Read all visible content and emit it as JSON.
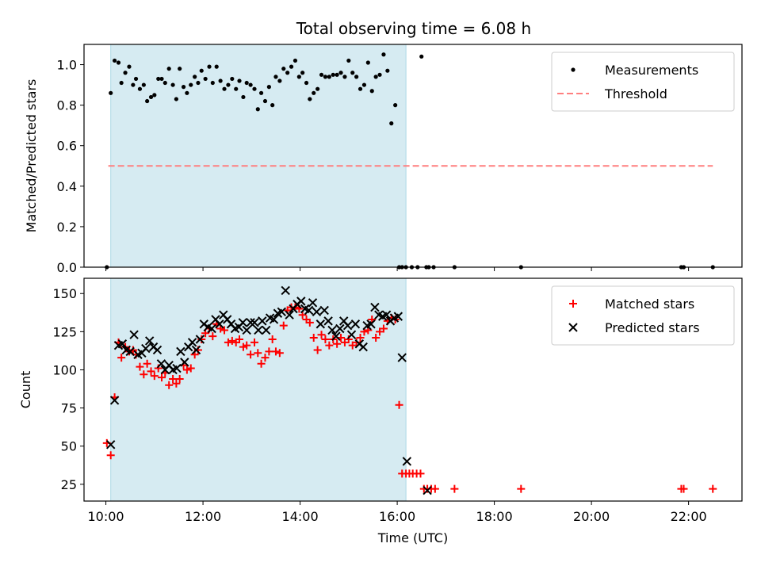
{
  "chart_data": [
    {
      "type": "scatter",
      "title": "Total observing time = 6.08 h",
      "xlabel": "",
      "ylabel": "Matched/Predicted stars",
      "xlim": [
        9.55,
        23.1
      ],
      "ylim": [
        0,
        1.1
      ],
      "yticks": [
        0.0,
        0.2,
        0.4,
        0.6,
        0.8,
        1.0
      ],
      "ytick_labels": [
        "0.0",
        "0.2",
        "0.4",
        "0.6",
        "0.8",
        "1.0"
      ],
      "grid": false,
      "legend_position": "top-right",
      "shaded_span": {
        "x0": 10.1,
        "x1": 16.18,
        "color": "#add8e6"
      },
      "threshold": {
        "name": "Threshold",
        "y": 0.5,
        "x0": 10.05,
        "x1": 22.5,
        "color": "#ff7f7f"
      },
      "series": [
        {
          "name": "Measurements",
          "color": "#000000",
          "x": [
            10.02,
            10.1,
            10.18,
            10.26,
            10.32,
            10.4,
            10.48,
            10.56,
            10.62,
            10.7,
            10.78,
            10.85,
            10.93,
            11.0,
            11.08,
            11.15,
            11.22,
            11.3,
            11.38,
            11.45,
            11.52,
            11.6,
            11.67,
            11.75,
            11.83,
            11.9,
            11.97,
            12.05,
            12.13,
            12.2,
            12.28,
            12.36,
            12.44,
            12.52,
            12.6,
            12.68,
            12.75,
            12.83,
            12.9,
            12.98,
            13.06,
            13.13,
            13.2,
            13.28,
            13.36,
            13.43,
            13.5,
            13.58,
            13.66,
            13.74,
            13.82,
            13.9,
            13.98,
            14.05,
            14.13,
            14.2,
            14.28,
            14.36,
            14.44,
            14.52,
            14.6,
            14.68,
            14.76,
            14.84,
            14.92,
            15.0,
            15.08,
            15.16,
            15.24,
            15.32,
            15.4,
            15.48,
            15.56,
            15.64,
            15.72,
            15.8,
            15.88,
            15.96,
            16.04,
            16.1,
            16.18,
            16.3,
            16.42,
            16.5,
            16.6,
            16.65,
            16.75,
            17.18,
            18.55,
            21.85,
            21.9,
            22.5
          ],
          "y": [
            0.0,
            0.86,
            1.02,
            1.01,
            0.91,
            0.96,
            0.99,
            0.9,
            0.93,
            0.88,
            0.9,
            0.82,
            0.84,
            0.85,
            0.93,
            0.93,
            0.91,
            0.98,
            0.9,
            0.83,
            0.98,
            0.89,
            0.86,
            0.9,
            0.94,
            0.91,
            0.97,
            0.93,
            0.99,
            0.91,
            0.99,
            0.92,
            0.88,
            0.9,
            0.93,
            0.88,
            0.92,
            0.84,
            0.91,
            0.9,
            0.88,
            0.78,
            0.86,
            0.82,
            0.89,
            0.8,
            0.94,
            0.92,
            0.98,
            0.96,
            0.99,
            1.02,
            0.94,
            0.96,
            0.91,
            0.83,
            0.86,
            0.88,
            0.95,
            0.94,
            0.94,
            0.95,
            0.95,
            0.96,
            0.94,
            1.02,
            0.96,
            0.94,
            0.88,
            0.9,
            1.01,
            0.87,
            0.94,
            0.95,
            1.05,
            0.97,
            0.71,
            0.8,
            0.0,
            0.0,
            0.0,
            0.0,
            0.0,
            1.04,
            0.0,
            0.0,
            0.0,
            0.0,
            0.0,
            0.0,
            0.0,
            0.0
          ]
        }
      ]
    },
    {
      "type": "scatter",
      "title": "",
      "xlabel": "Time (UTC)",
      "ylabel": "Count",
      "xlim": [
        9.55,
        23.1
      ],
      "ylim": [
        14,
        160
      ],
      "xticks": [
        10,
        12,
        14,
        16,
        18,
        20,
        22
      ],
      "xtick_labels": [
        "10:00",
        "12:00",
        "14:00",
        "16:00",
        "18:00",
        "20:00",
        "22:00"
      ],
      "yticks": [
        25,
        50,
        75,
        100,
        125,
        150
      ],
      "ytick_labels": [
        "25",
        "50",
        "75",
        "100",
        "125",
        "150"
      ],
      "grid": false,
      "legend_position": "top-right",
      "shaded_span": {
        "x0": 10.1,
        "x1": 16.18,
        "color": "#add8e6"
      },
      "series": [
        {
          "name": "Matched stars",
          "marker": "plus",
          "color": "#ff0000",
          "x": [
            10.02,
            10.1,
            10.18,
            10.26,
            10.32,
            10.4,
            10.48,
            10.56,
            10.62,
            10.7,
            10.78,
            10.85,
            10.93,
            11.0,
            11.08,
            11.15,
            11.22,
            11.3,
            11.38,
            11.45,
            11.52,
            11.6,
            11.67,
            11.75,
            11.83,
            11.9,
            11.97,
            12.05,
            12.13,
            12.2,
            12.28,
            12.36,
            12.44,
            12.52,
            12.6,
            12.68,
            12.75,
            12.83,
            12.9,
            12.98,
            13.06,
            13.13,
            13.2,
            13.28,
            13.36,
            13.43,
            13.5,
            13.58,
            13.66,
            13.74,
            13.82,
            13.9,
            13.98,
            14.05,
            14.13,
            14.2,
            14.28,
            14.36,
            14.44,
            14.52,
            14.6,
            14.68,
            14.76,
            14.84,
            14.92,
            15.0,
            15.08,
            15.16,
            15.24,
            15.32,
            15.4,
            15.48,
            15.56,
            15.64,
            15.72,
            15.8,
            15.88,
            15.96,
            16.04,
            16.1,
            16.18,
            16.25,
            16.32,
            16.4,
            16.48,
            16.55,
            16.62,
            16.7,
            16.78,
            17.18,
            18.55,
            21.85,
            21.9,
            22.5
          ],
          "y": [
            52,
            44,
            82,
            118,
            108,
            115,
            112,
            113,
            110,
            102,
            97,
            104,
            99,
            96,
            101,
            95,
            98,
            90,
            94,
            91,
            94,
            103,
            100,
            101,
            110,
            113,
            120,
            124,
            127,
            122,
            130,
            127,
            126,
            118,
            119,
            118,
            120,
            115,
            116,
            110,
            118,
            111,
            104,
            108,
            112,
            120,
            112,
            111,
            129,
            139,
            141,
            141,
            140,
            136,
            133,
            131,
            121,
            113,
            123,
            120,
            116,
            120,
            117,
            121,
            118,
            120,
            116,
            118,
            121,
            125,
            126,
            133,
            121,
            125,
            127,
            132,
            134,
            133,
            77,
            32,
            32,
            32,
            32,
            32,
            32,
            22,
            22,
            22,
            22,
            22,
            22,
            22,
            22,
            22
          ]
        },
        {
          "name": "Predicted stars",
          "marker": "x",
          "color": "#000000",
          "x": [
            10.1,
            10.18,
            10.26,
            10.34,
            10.42,
            10.5,
            10.58,
            10.66,
            10.74,
            10.82,
            10.9,
            10.98,
            11.06,
            11.14,
            11.22,
            11.3,
            11.38,
            11.46,
            11.54,
            11.62,
            11.7,
            11.78,
            11.86,
            11.94,
            12.02,
            12.1,
            12.18,
            12.26,
            12.34,
            12.42,
            12.5,
            12.58,
            12.66,
            12.74,
            12.82,
            12.9,
            12.98,
            13.06,
            13.14,
            13.22,
            13.3,
            13.38,
            13.46,
            13.54,
            13.62,
            13.7,
            13.78,
            13.86,
            13.94,
            14.02,
            14.1,
            14.18,
            14.26,
            14.34,
            14.42,
            14.5,
            14.58,
            14.66,
            14.74,
            14.82,
            14.9,
            14.98,
            15.06,
            15.14,
            15.22,
            15.3,
            15.38,
            15.46,
            15.54,
            15.62,
            15.7,
            15.78,
            15.86,
            15.94,
            16.02,
            16.1,
            16.2,
            16.62
          ],
          "y": [
            51,
            80,
            116,
            117,
            113,
            112,
            123,
            110,
            111,
            114,
            119,
            115,
            113,
            104,
            100,
            103,
            100,
            101,
            112,
            105,
            115,
            118,
            113,
            120,
            130,
            128,
            127,
            133,
            130,
            136,
            133,
            130,
            127,
            128,
            131,
            126,
            131,
            131,
            126,
            132,
            126,
            134,
            133,
            137,
            138,
            152,
            136,
            140,
            143,
            145,
            140,
            139,
            144,
            138,
            130,
            139,
            132,
            126,
            122,
            127,
            132,
            129,
            123,
            130,
            117,
            115,
            129,
            130,
            141,
            136,
            135,
            136,
            132,
            134,
            135,
            108,
            40,
            21
          ]
        }
      ]
    }
  ]
}
